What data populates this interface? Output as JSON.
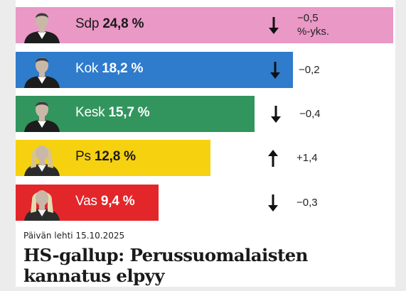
{
  "chart_data": {
    "type": "bar",
    "orientation": "horizontal",
    "unit": "%",
    "change_unit": "%-yks.",
    "bars": [
      {
        "party": "Sdp",
        "value": 24.8,
        "value_label": "24,8 %",
        "change": -0.5,
        "change_label": "−0,5",
        "change_unit_label": "%-yks.",
        "trend": "down",
        "color": "#ea98c6",
        "label_color": "#1a1a1a"
      },
      {
        "party": "Kok",
        "value": 18.2,
        "value_label": "18,2 %",
        "change": -0.2,
        "change_label": "−0,2",
        "trend": "down",
        "color": "#2f7bcc",
        "label_color": "#ffffff"
      },
      {
        "party": "Kesk",
        "value": 15.7,
        "value_label": "15,7 %",
        "change": -0.4,
        "change_label": "−0,4",
        "trend": "down",
        "color": "#32955d",
        "label_color": "#ffffff"
      },
      {
        "party": "Ps",
        "value": 12.8,
        "value_label": "12,8 %",
        "change": 1.4,
        "change_label": "+1,4",
        "trend": "up",
        "color": "#f6d110",
        "label_color": "#1a1a1a"
      },
      {
        "party": "Vas",
        "value": 9.4,
        "value_label": "9,4 %",
        "change": -0.3,
        "change_label": "−0,3",
        "trend": "down",
        "color": "#e3262a",
        "label_color": "#ffffff"
      }
    ]
  },
  "date_line": "Päivän lehti 15.10.2025",
  "headline": "HS-gallup: Perussuomalaisten kannatus elpyy"
}
